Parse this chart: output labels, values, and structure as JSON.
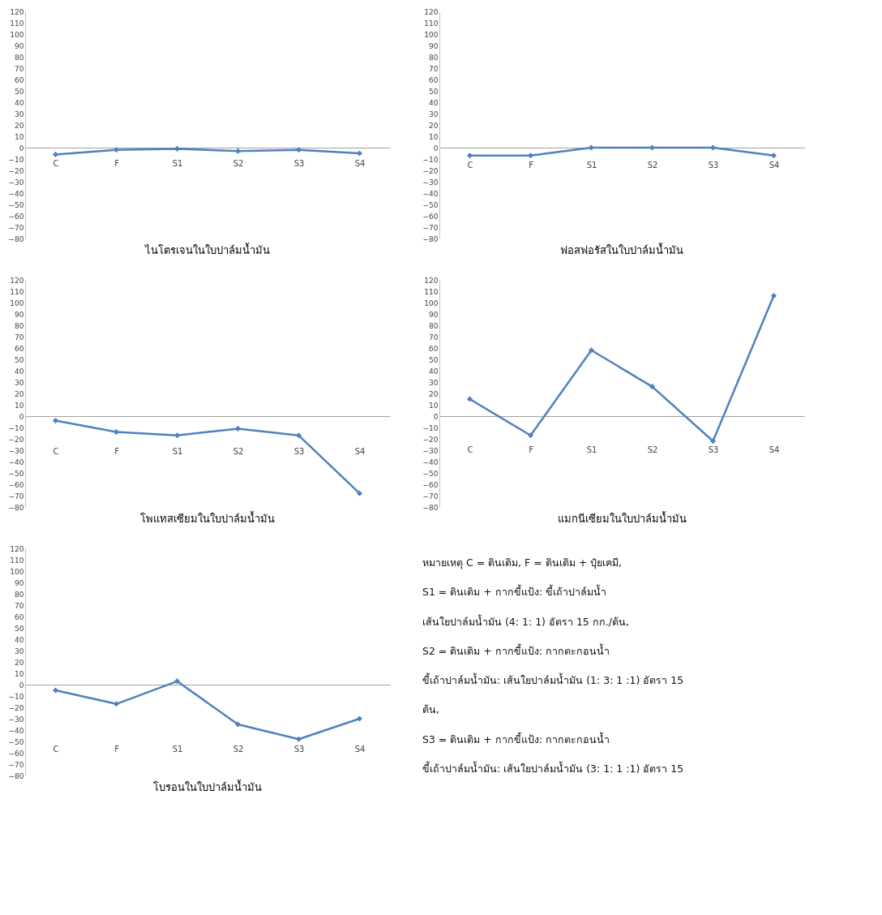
{
  "chart_data": [
    {
      "type": "line",
      "title": "ไนโตรเจนในใบปาล์มน้ำมัน",
      "categories": [
        "C",
        "F",
        "S1",
        "S2",
        "S3",
        "S4"
      ],
      "values": [
        -6,
        -2,
        -1,
        -3,
        -2,
        -5
      ],
      "color": "#4f81bd",
      "marker": "diamond",
      "ylim": [
        -80,
        120
      ],
      "yticks": [
        -80,
        -70,
        -60,
        -50,
        -40,
        -30,
        -20,
        -10,
        0,
        10,
        20,
        30,
        40,
        50,
        60,
        70,
        80,
        90,
        100,
        110,
        120
      ]
    },
    {
      "type": "line",
      "title": "ฟอสฟอรัสในใบปาล์มน้ำมัน",
      "categories": [
        "C",
        "F",
        "S1",
        "S2",
        "S3",
        "S4"
      ],
      "values": [
        -7,
        -7,
        0,
        0,
        0,
        -7
      ],
      "color": "#4f81bd",
      "marker": "diamond",
      "ylim": [
        -80,
        120
      ],
      "yticks": [
        -80,
        -70,
        -60,
        -50,
        -40,
        -30,
        -20,
        -10,
        0,
        10,
        20,
        30,
        40,
        50,
        60,
        70,
        80,
        90,
        100,
        110,
        120
      ]
    },
    {
      "type": "line",
      "title": "โพแทสเซียมในใบปาล์มน้ำมัน",
      "categories": [
        "C",
        "F",
        "S1",
        "S2",
        "S3",
        "S4"
      ],
      "values": [
        -4,
        -14,
        -17,
        -11,
        -17,
        -68
      ],
      "color": "#4f81bd",
      "marker": "diamond",
      "ylim": [
        -80,
        120
      ],
      "yticks": [
        -80,
        -70,
        -60,
        -50,
        -40,
        -30,
        -20,
        -10,
        0,
        10,
        20,
        30,
        40,
        50,
        60,
        70,
        80,
        90,
        100,
        110,
        120
      ]
    },
    {
      "type": "line",
      "title": "แมกนีเซียมในใบปาล์มน้ำมัน",
      "categories": [
        "C",
        "F",
        "S1",
        "S2",
        "S3",
        "S4"
      ],
      "values": [
        15,
        -17,
        58,
        26,
        -22,
        106
      ],
      "color": "#4f81bd",
      "marker": "diamond",
      "ylim": [
        -80,
        120
      ],
      "yticks": [
        -80,
        -70,
        -60,
        -50,
        -40,
        -30,
        -20,
        -10,
        0,
        10,
        20,
        30,
        40,
        50,
        60,
        70,
        80,
        90,
        100,
        110,
        120
      ]
    },
    {
      "type": "line",
      "title": "โบรอนในใบปาล์มน้ำมัน",
      "categories": [
        "C",
        "F",
        "S1",
        "S2",
        "S3",
        "S4"
      ],
      "values": [
        -5,
        -17,
        3,
        -35,
        -48,
        -30
      ],
      "color": "#4f81bd",
      "marker": "diamond",
      "ylim": [
        -80,
        120
      ],
      "yticks": [
        -80,
        -70,
        -60,
        -50,
        -40,
        -30,
        -20,
        -10,
        0,
        10,
        20,
        30,
        40,
        50,
        60,
        70,
        80,
        90,
        100,
        110,
        120
      ]
    },
    {
      "type": "other",
      "annotations": [
        "หมายเหตุ  C = ดินเดิม, F = ดินเดิม + ปุ๋ยเคมี,",
        "        S1 = ดินเดิม + กากขี้แป้ง: ขี้เถ้าปาล์มน้ำ",
        "เส้นใยปาล์มน้ำมัน (4: 1: 1) อัตรา 15 กก./ต้น,",
        "        S2 = ดินเดิม + กากขี้แป้ง: กากตะกอนน้ำ",
        "ขี้เถ้าปาล์มน้ำมัน: เส้นใยปาล์มน้ำมัน (1: 3: 1 :1) อัตรา 15",
        "ต้น,",
        "        S3 = ดินเดิม + กากขี้แป้ง: กากตะกอนน้ำ",
        "ขี้เถ้าปาล์มน้ำมัน: เส้นใยปาล์มน้ำมัน (3: 1: 1 :1) อัตรา 15"
      ]
    }
  ]
}
